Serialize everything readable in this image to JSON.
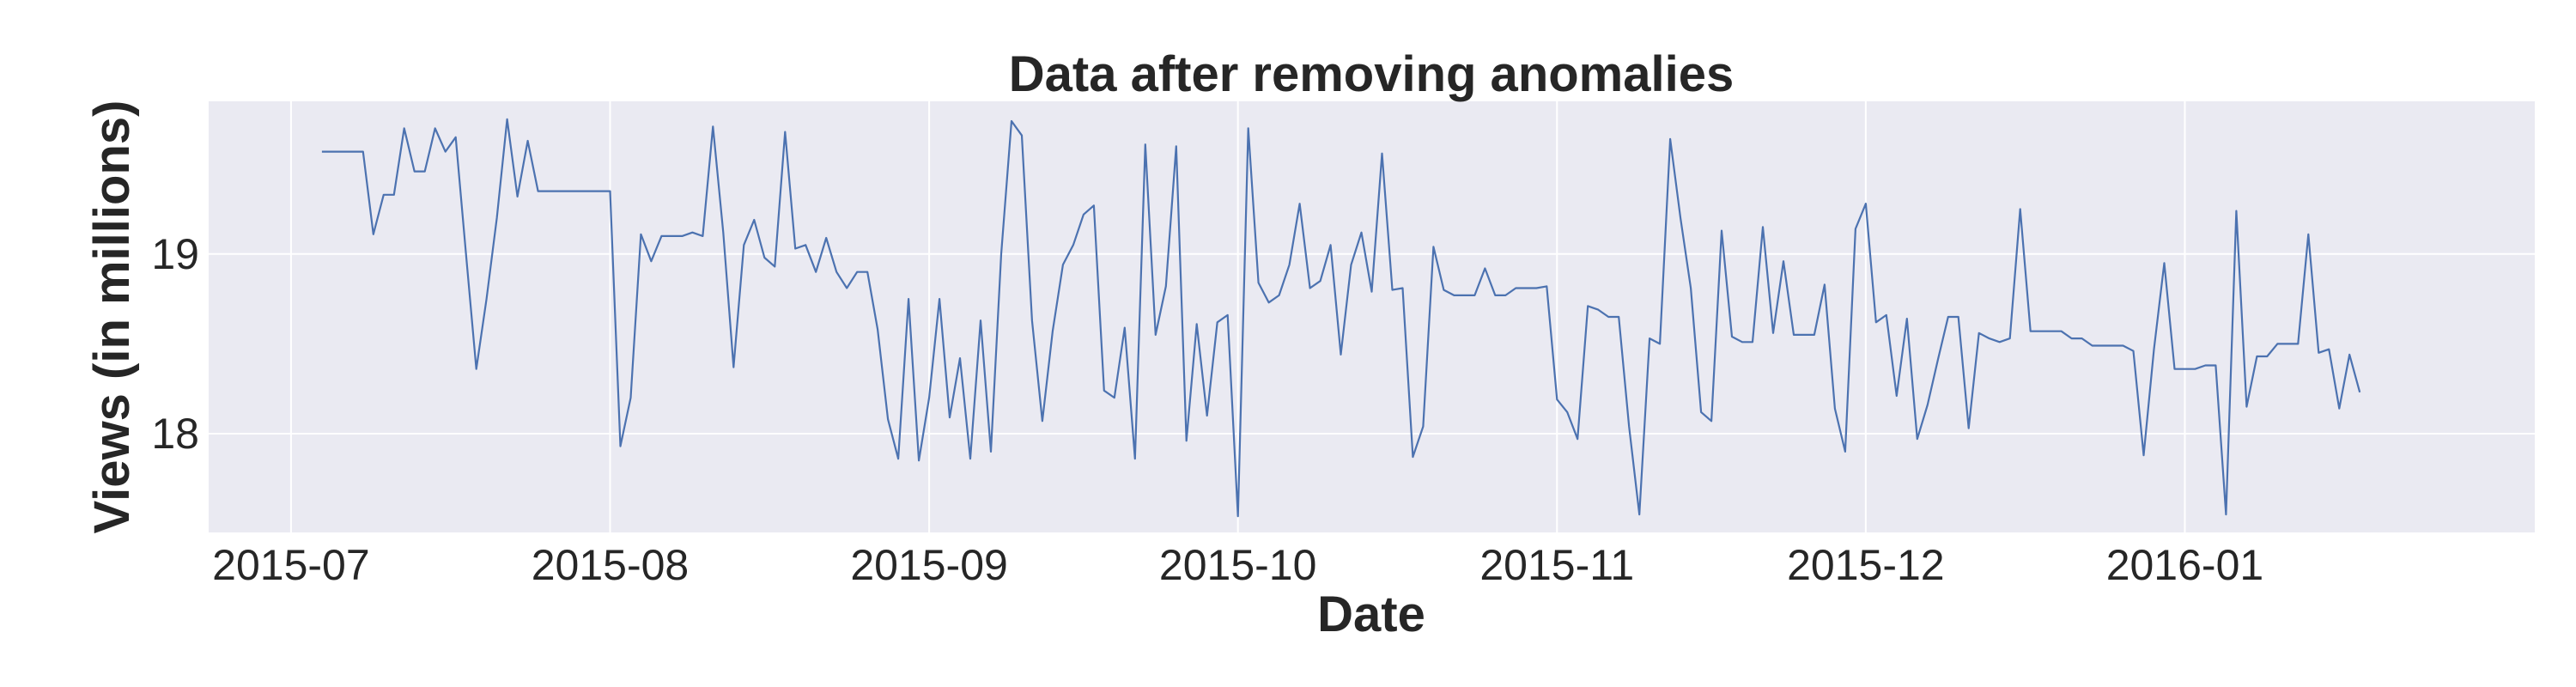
{
  "chart_data": {
    "type": "line",
    "title": "Data after removing anomalies",
    "xlabel": "Date",
    "ylabel": "Views (in millions)",
    "x_start": "2015-07-04",
    "x_step_days": 1,
    "xlim": [
      "2015-06-23",
      "2016-02-04"
    ],
    "ylim": [
      17.45,
      19.85
    ],
    "x_ticks": [
      {
        "date": "2015-07-01",
        "label": "2015-07"
      },
      {
        "date": "2015-08-01",
        "label": "2015-08"
      },
      {
        "date": "2015-09-01",
        "label": "2015-09"
      },
      {
        "date": "2015-10-01",
        "label": "2015-10"
      },
      {
        "date": "2015-11-01",
        "label": "2015-11"
      },
      {
        "date": "2015-12-01",
        "label": "2015-12"
      },
      {
        "date": "2016-01-01",
        "label": "2016-01"
      }
    ],
    "y_ticks": [
      {
        "value": 18,
        "label": "18"
      },
      {
        "value": 19,
        "label": "19"
      }
    ],
    "grid": true,
    "colors": {
      "line": "#4c72b0",
      "plot_bg": "#eaeaf2",
      "grid": "#ffffff",
      "text": "#262626"
    },
    "series": [
      {
        "values": [
          19.57,
          19.57,
          19.57,
          19.57,
          19.57,
          19.11,
          19.33,
          19.33,
          19.7,
          19.46,
          19.46,
          19.7,
          19.57,
          19.65,
          19.0,
          18.36,
          18.75,
          19.2,
          19.75,
          19.32,
          19.63,
          19.35,
          19.35,
          19.35,
          19.35,
          19.35,
          19.35,
          19.35,
          19.35,
          17.93,
          18.2,
          19.11,
          18.96,
          19.1,
          19.1,
          19.1,
          19.12,
          19.1,
          19.71,
          19.12,
          18.37,
          19.05,
          19.19,
          18.98,
          18.93,
          19.68,
          19.03,
          19.05,
          18.9,
          19.09,
          18.9,
          18.81,
          18.9,
          18.9,
          18.58,
          18.08,
          17.86,
          18.75,
          17.85,
          18.2,
          18.75,
          18.09,
          18.42,
          17.86,
          18.63,
          17.9,
          19.0,
          19.74,
          19.66,
          18.63,
          18.07,
          18.57,
          18.94,
          19.05,
          19.22,
          19.27,
          18.24,
          18.2,
          18.59,
          17.86,
          19.61,
          18.55,
          18.82,
          19.6,
          17.96,
          18.61,
          18.1,
          18.62,
          18.66,
          17.54,
          19.7,
          18.84,
          18.73,
          18.77,
          18.94,
          19.28,
          18.81,
          18.85,
          19.05,
          18.44,
          18.94,
          19.12,
          18.79,
          19.56,
          18.8,
          18.81,
          17.87,
          18.04,
          19.04,
          18.8,
          18.77,
          18.77,
          18.77,
          18.92,
          18.77,
          18.77,
          18.81,
          18.81,
          18.81,
          18.82,
          18.19,
          18.12,
          17.97,
          18.71,
          18.69,
          18.65,
          18.65,
          18.04,
          17.55,
          18.53,
          18.5,
          19.64,
          19.2,
          18.81,
          18.12,
          18.07,
          19.13,
          18.54,
          18.51,
          18.51,
          19.15,
          18.56,
          18.96,
          18.55,
          18.55,
          18.55,
          18.83,
          18.14,
          17.9,
          19.14,
          19.28,
          18.62,
          18.66,
          18.21,
          18.64,
          17.97,
          18.16,
          18.41,
          18.65,
          18.65,
          18.03,
          18.56,
          18.53,
          18.51,
          18.53,
          19.25,
          18.57,
          18.57,
          18.57,
          18.57,
          18.53,
          18.53,
          18.49,
          18.49,
          18.49,
          18.49,
          18.46,
          17.88,
          18.47,
          18.95,
          18.36,
          18.36,
          18.36,
          18.38,
          18.38,
          17.55,
          19.24,
          18.15,
          18.43,
          18.43,
          18.5,
          18.5,
          18.5,
          19.11,
          18.45,
          18.47,
          18.14,
          18.44,
          18.23
        ]
      }
    ]
  }
}
